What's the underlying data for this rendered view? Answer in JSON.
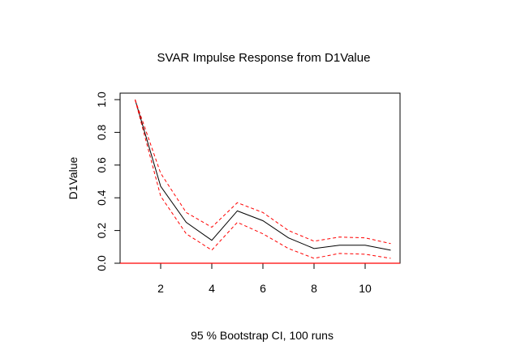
{
  "chart_data": {
    "type": "line",
    "title": "SVAR Impulse Response from D1Value",
    "ylabel": "D1Value",
    "xlabel": "95 % Bootstrap CI,  100 runs",
    "xlim": [
      0.6,
      11.4
    ],
    "ylim": [
      0.0,
      1.0
    ],
    "x": [
      1,
      2,
      3,
      4,
      5,
      6,
      7,
      8,
      9,
      10,
      11
    ],
    "xticks": [
      2,
      4,
      6,
      8,
      10
    ],
    "yticks": [
      0.0,
      0.2,
      0.4,
      0.6,
      0.8,
      1.0
    ],
    "ytick_labels": [
      "0.0",
      "0.2",
      "0.4",
      "0.6",
      "0.8",
      "1.0"
    ],
    "series": [
      {
        "name": "response",
        "color": "#000000",
        "style": "solid",
        "values": [
          1.0,
          0.47,
          0.25,
          0.14,
          0.32,
          0.26,
          0.155,
          0.09,
          0.11,
          0.11,
          0.08
        ]
      },
      {
        "name": "upper CI",
        "color": "#ff0000",
        "style": "dashed",
        "values": [
          1.0,
          0.55,
          0.31,
          0.22,
          0.37,
          0.31,
          0.2,
          0.135,
          0.16,
          0.155,
          0.12
        ]
      },
      {
        "name": "lower CI",
        "color": "#ff0000",
        "style": "dashed",
        "values": [
          1.0,
          0.41,
          0.18,
          0.08,
          0.25,
          0.18,
          0.09,
          0.03,
          0.06,
          0.055,
          0.03
        ]
      }
    ],
    "hline": {
      "y": 0.0,
      "color": "#ff0000"
    }
  }
}
